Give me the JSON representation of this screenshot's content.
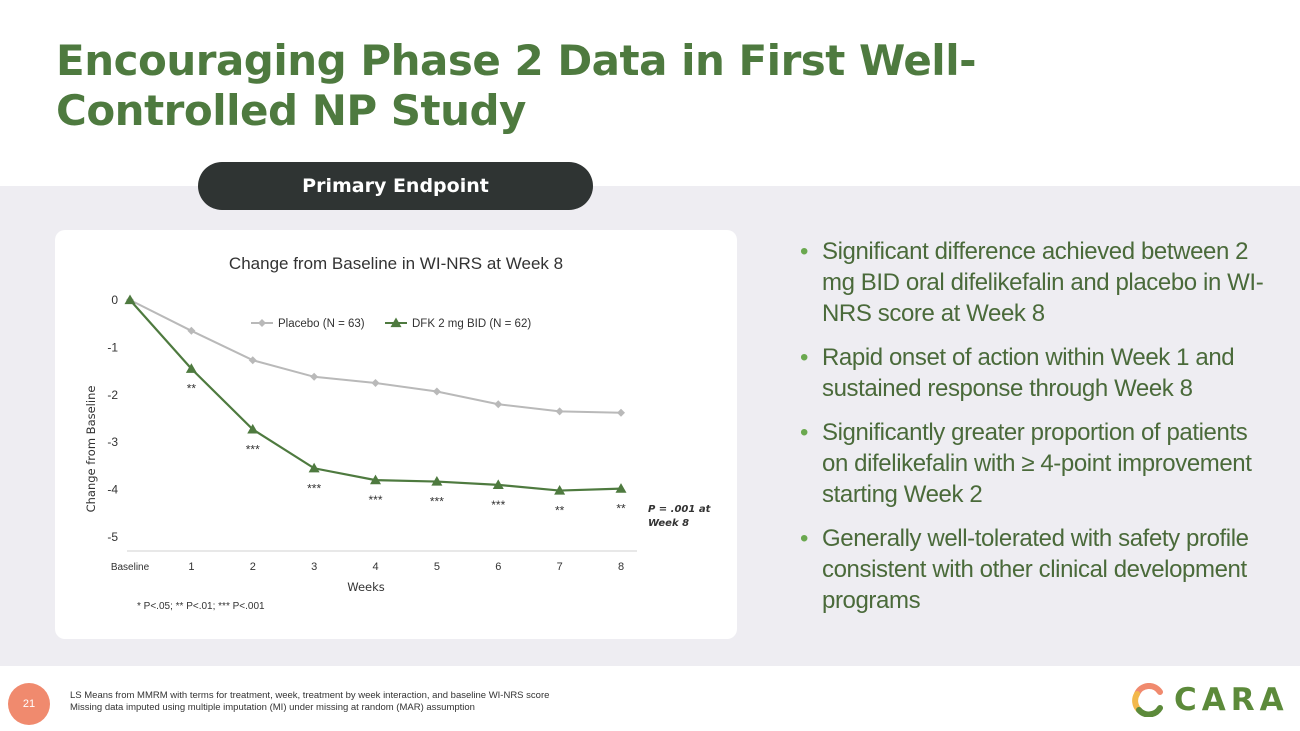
{
  "slide": {
    "title": "Encouraging Phase 2 Data in First Well-Controlled NP Study",
    "section_pill": "Primary Endpoint",
    "page_number": "21"
  },
  "bullets": [
    "Significant difference achieved between 2 mg BID oral difelikefalin and placebo in WI-NRS score at Week 8",
    "Rapid onset of action within Week 1 and sustained response through Week 8",
    "Significantly greater proportion of patients on difelikefalin with ≥ 4-point improvement starting Week 2",
    "Generally well-tolerated with safety profile consistent with other clinical development programs"
  ],
  "footnotes": [
    "LS Means from MMRM with terms for treatment, week, treatment by week interaction, and baseline WI-NRS score",
    "Missing data imputed using multiple imputation (MI) under missing at random (MAR) assumption"
  ],
  "logo": {
    "text": "CARA",
    "colors": [
      "#f08a6e",
      "#f2b84b",
      "#5c8a3a"
    ]
  },
  "colors": {
    "title": "#4e7a3f",
    "placebo": "#b9b9b9",
    "dfk": "#4e7a3f",
    "band": "#eeedf2",
    "pill": "#2f3433"
  },
  "chart_data": {
    "type": "line",
    "title": "Change from Baseline in WI-NRS at Week 8",
    "xlabel": "Weeks",
    "ylabel": "Change from Baseline",
    "x": [
      0,
      1,
      2,
      3,
      4,
      5,
      6,
      7,
      8
    ],
    "x_tick_labels": [
      "Baseline",
      "1",
      "2",
      "3",
      "4",
      "5",
      "6",
      "7",
      "8"
    ],
    "y_ticks": [
      0,
      -1,
      -2,
      -3,
      -4,
      -5
    ],
    "y_tick_labels": [
      "0",
      "-1",
      "-2",
      "-3",
      "-4",
      "-5"
    ],
    "ylim": [
      -5,
      0
    ],
    "series": [
      {
        "name": "Placebo (N = 63)",
        "marker": "diamond",
        "values": [
          0,
          -0.65,
          -1.27,
          -1.62,
          -1.75,
          -1.93,
          -2.2,
          -2.35,
          -2.38
        ]
      },
      {
        "name": "DFK 2 mg BID (N = 62)",
        "marker": "triangle",
        "values": [
          0,
          -1.45,
          -2.73,
          -3.55,
          -3.8,
          -3.83,
          -3.9,
          -4.02,
          -3.98
        ]
      }
    ],
    "significance": [
      "",
      "**",
      "***",
      "***",
      "***",
      "***",
      "***",
      "**",
      "**"
    ],
    "annotation": [
      "P = .001 at",
      "Week 8"
    ],
    "footnote": "* P<.05; ** P<.01; *** P<.001",
    "legend_position": "top"
  }
}
